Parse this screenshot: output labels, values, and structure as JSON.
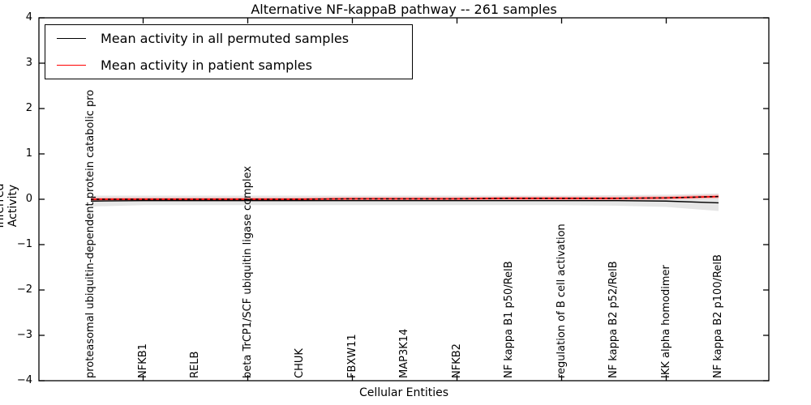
{
  "title": "Alternative NF-kappaB pathway -- 261 samples",
  "legend": {
    "items": [
      {
        "label": "Mean activity in all permuted samples",
        "color": "#000000"
      },
      {
        "label": "Mean activity in patient samples",
        "color": "#ff0000"
      }
    ]
  },
  "chart_data": {
    "type": "line",
    "title": "Alternative NF-kappaB pathway -- 261 samples",
    "xlabel": "Cellular Entities",
    "ylabel": "Inferred Activity",
    "ylim": [
      -4,
      4
    ],
    "ytick_labels": [
      "4",
      "3",
      "2",
      "1",
      "0",
      "−1",
      "−2",
      "−3",
      "−4"
    ],
    "ytick_values": [
      4,
      3,
      2,
      1,
      0,
      -1,
      -2,
      -3,
      -4
    ],
    "grid": false,
    "legend_position": "upper left",
    "categories": [
      "proteasomal ubiquitin-dependent protein catabolic pro",
      "NFKB1",
      "RELB",
      "beta TrCP1/SCF ubiquitin ligase complex",
      "CHUK",
      "FBXW11",
      "MAP3K14",
      "NFKB2",
      "NF kappa B1 p50/RelB",
      "regulation of B cell activation",
      "NF kappa B2 p52/RelB",
      "IKK alpha homodimer",
      "NF kappa B2 p100/RelB"
    ],
    "series": [
      {
        "name": "Mean activity in all permuted samples",
        "color": "#000000",
        "values": [
          -0.04,
          -0.03,
          -0.03,
          -0.03,
          -0.03,
          -0.03,
          -0.03,
          -0.03,
          -0.03,
          -0.03,
          -0.03,
          -0.04,
          -0.08
        ],
        "band_upper": [
          0.08,
          0.08,
          0.08,
          0.08,
          0.08,
          0.08,
          0.08,
          0.08,
          0.08,
          0.08,
          0.09,
          0.1,
          0.13
        ],
        "band_lower": [
          -0.16,
          -0.13,
          -0.13,
          -0.13,
          -0.13,
          -0.13,
          -0.13,
          -0.13,
          -0.13,
          -0.13,
          -0.14,
          -0.17,
          -0.26
        ],
        "band_color": "#d9d9d9"
      },
      {
        "name": "Mean activity in patient samples",
        "color": "#ff0000",
        "values": [
          0.0,
          0.0,
          0.0,
          0.0,
          0.0,
          0.01,
          0.01,
          0.01,
          0.02,
          0.02,
          0.02,
          0.03,
          0.06
        ],
        "band_upper": [
          0.04,
          0.04,
          0.04,
          0.04,
          0.04,
          0.05,
          0.05,
          0.05,
          0.06,
          0.06,
          0.06,
          0.07,
          0.1
        ],
        "band_lower": [
          -0.04,
          -0.04,
          -0.04,
          -0.04,
          -0.04,
          -0.03,
          -0.03,
          -0.03,
          -0.02,
          -0.02,
          -0.02,
          -0.01,
          0.02
        ],
        "band_color": "#ff9999"
      }
    ]
  }
}
